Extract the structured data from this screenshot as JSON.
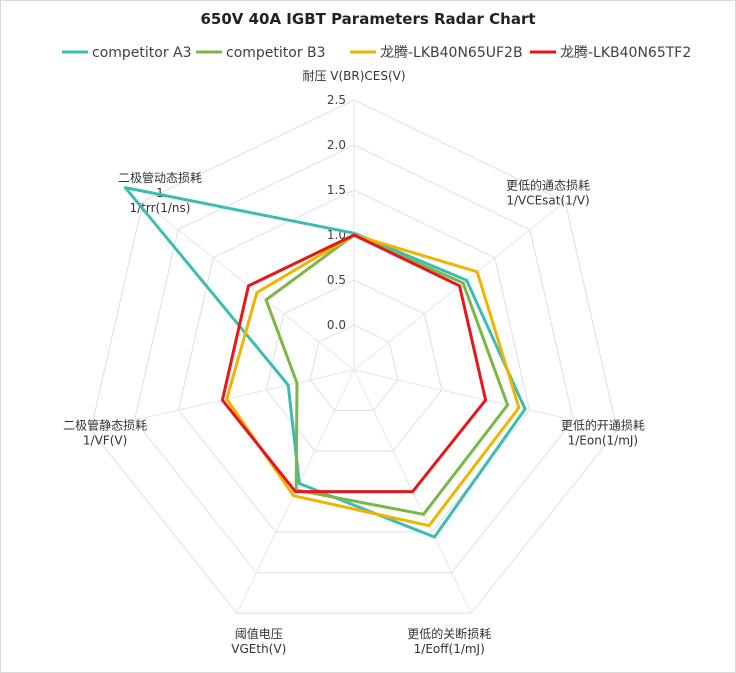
{
  "chart_data": {
    "type": "radar",
    "title": "650V 40A IGBT Parameters  Radar Chart",
    "axes": [
      {
        "label_lines": [
          "耐压 V(BR)CES(V)"
        ]
      },
      {
        "label_lines": [
          "更低的通态损耗",
          "1/VCEsat(1/V)"
        ]
      },
      {
        "label_lines": [
          "更低的开通损耗",
          "1/Eon(1/mJ)"
        ]
      },
      {
        "label_lines": [
          "更低的关断损耗",
          "1/Eoff(1/mJ)"
        ]
      },
      {
        "label_lines": [
          "阈值电压",
          "VGEth(V)"
        ]
      },
      {
        "label_lines": [
          "二极管静态损耗",
          "1/VF(V)"
        ]
      },
      {
        "label_lines": [
          "二极管动态损耗",
          "1",
          "1/trr(1/ns)"
        ]
      }
    ],
    "r_min": -0.5,
    "r_max": 2.5,
    "tick_values": [
      0.0,
      0.5,
      1.0,
      1.5,
      2.0,
      2.5
    ],
    "tick_labels": [
      "0.0",
      "0.5",
      "1.0",
      "1.5",
      "2.0",
      "2.5"
    ],
    "legend_position": "top",
    "series": [
      {
        "name": "competitor A3",
        "color": "#3cbcb4",
        "values": [
          1.02,
          1.1,
          1.45,
          1.56,
          0.9,
          0.25,
          2.75
        ]
      },
      {
        "name": "competitor B3",
        "color": "#7ab648",
        "values": [
          1.0,
          1.05,
          1.25,
          1.28,
          0.98,
          0.15,
          0.75
        ]
      },
      {
        "name": "龙腾-LKB40N65UF2B",
        "color": "#f0b400",
        "values": [
          1.0,
          1.25,
          1.38,
          1.42,
          1.05,
          0.95,
          0.88
        ]
      },
      {
        "name": "龙腾-LKB40N65TF2",
        "color": "#e8161b",
        "values": [
          1.0,
          1.0,
          1.0,
          1.0,
          1.0,
          1.0,
          1.0
        ]
      }
    ]
  }
}
